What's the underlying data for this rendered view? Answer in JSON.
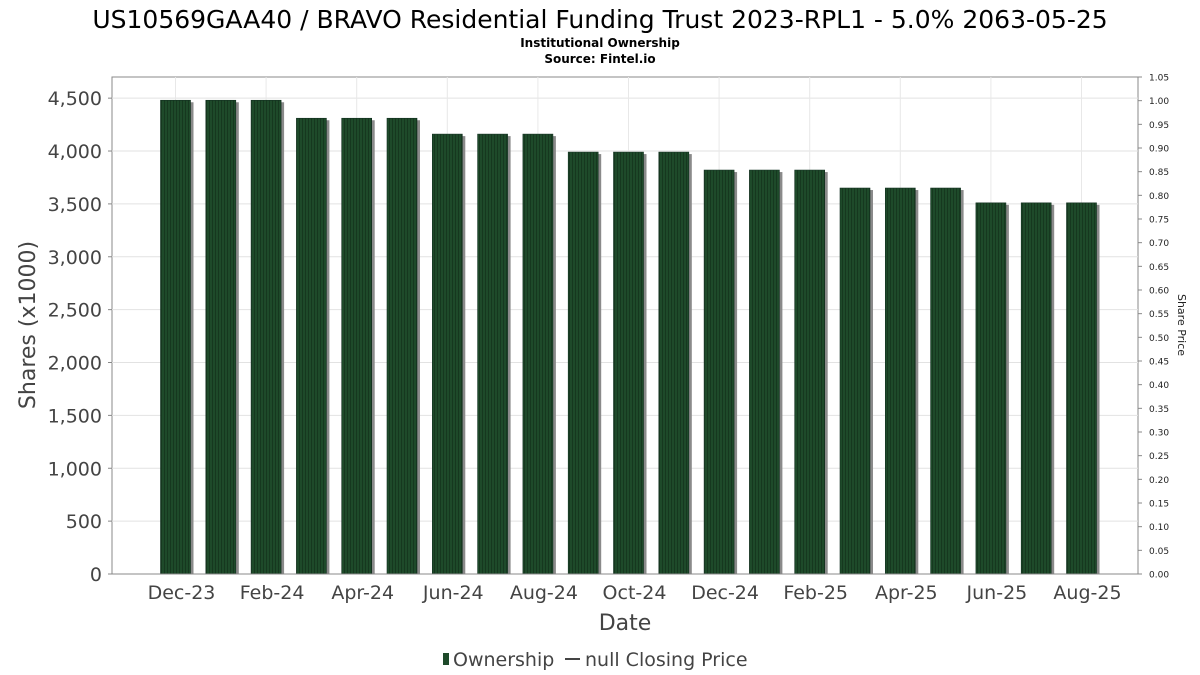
{
  "chart_data": {
    "type": "bar",
    "title": "US10569GAA40 / BRAVO Residential Funding Trust 2023-RPL1 - 5.0% 2063-05-25",
    "subtitle_lines": [
      "Institutional Ownership",
      "Source: Fintel.io"
    ],
    "xlabel": "Date",
    "ylabel": "Shares (x1000)",
    "y2label": "Share Price",
    "ylim": [
      0,
      4700
    ],
    "y2lim": [
      0,
      1.05
    ],
    "yticks": [
      "0",
      "500",
      "1,000",
      "1,500",
      "2,000",
      "2,500",
      "3,000",
      "3,500",
      "4,000",
      "4,500"
    ],
    "y2ticks": [
      "0.00",
      "0.05",
      "0.10",
      "0.15",
      "0.20",
      "0.25",
      "0.30",
      "0.35",
      "0.40",
      "0.45",
      "0.50",
      "0.55",
      "0.60",
      "0.65",
      "0.70",
      "0.75",
      "0.80",
      "0.85",
      "0.90",
      "0.95",
      "1.00",
      "1.05"
    ],
    "xtick_labels": [
      "Dec-23",
      "Feb-24",
      "Apr-24",
      "Jun-24",
      "Aug-24",
      "Oct-24",
      "Dec-24",
      "Feb-25",
      "Apr-25",
      "Jun-25",
      "Aug-25"
    ],
    "series": [
      {
        "name": "Ownership",
        "color": "#1e4a2a",
        "values": [
          4480,
          4480,
          4480,
          4310,
          4310,
          4310,
          4160,
          4160,
          4160,
          3990,
          3990,
          3990,
          3820,
          3820,
          3820,
          3650,
          3650,
          3650,
          3510,
          3510,
          3510
        ]
      },
      {
        "name": "null Closing Price",
        "color": "#000000",
        "values": []
      }
    ],
    "legend": {
      "position": "bottom-center",
      "items": [
        {
          "label": "Ownership",
          "symbol": "bar"
        },
        {
          "label": "null Closing Price",
          "symbol": "line"
        }
      ]
    },
    "grid": true
  }
}
